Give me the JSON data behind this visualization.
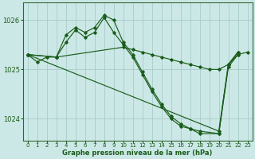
{
  "background_color": "#cce8e6",
  "grid_color": "#aad0ce",
  "line_color": "#1a5c1a",
  "xlabel": "Graphe pression niveau de la mer (hPa)",
  "xlim": [
    -0.5,
    23.5
  ],
  "ylim": [
    1023.55,
    1026.35
  ],
  "yticks": [
    1024,
    1025,
    1026
  ],
  "xticks": [
    0,
    1,
    2,
    3,
    4,
    5,
    6,
    7,
    8,
    9,
    10,
    11,
    12,
    13,
    14,
    15,
    16,
    17,
    18,
    19,
    20,
    21,
    22,
    23
  ],
  "series": [
    {
      "x": [
        0,
        1,
        2,
        3,
        10,
        11,
        12,
        13,
        14,
        15,
        16,
        17,
        18,
        19,
        20,
        21,
        22,
        23
      ],
      "y": [
        1025.3,
        1025.15,
        1025.25,
        1025.25,
        1025.45,
        1025.4,
        1025.35,
        1025.3,
        1025.25,
        1025.2,
        1025.15,
        1025.1,
        1025.05,
        1025.0,
        1025.0,
        1025.1,
        1025.3,
        1025.35
      ]
    },
    {
      "x": [
        0,
        3,
        4,
        5,
        6,
        7,
        8,
        9,
        10,
        11,
        12,
        13,
        14,
        15,
        16,
        17,
        18,
        20,
        21,
        22
      ],
      "y": [
        1025.3,
        1025.25,
        1025.55,
        1025.8,
        1025.65,
        1025.75,
        1026.05,
        1025.75,
        1025.5,
        1025.25,
        1024.9,
        1024.55,
        1024.25,
        1024.0,
        1023.85,
        1023.8,
        1023.75,
        1023.7,
        1025.05,
        1025.3
      ]
    },
    {
      "x": [
        0,
        3,
        4,
        5,
        6,
        7,
        8,
        9,
        10,
        11,
        12,
        13,
        14,
        15,
        16,
        17,
        18,
        20,
        21,
        22
      ],
      "y": [
        1025.3,
        1025.25,
        1025.7,
        1025.85,
        1025.75,
        1025.85,
        1026.1,
        1026.0,
        1025.55,
        1025.3,
        1024.95,
        1024.6,
        1024.3,
        1024.05,
        1023.9,
        1023.8,
        1023.7,
        1023.7,
        1025.1,
        1025.35
      ]
    },
    {
      "x": [
        0,
        20,
        21,
        22
      ],
      "y": [
        1025.3,
        1023.75,
        1025.1,
        1025.35
      ]
    }
  ]
}
